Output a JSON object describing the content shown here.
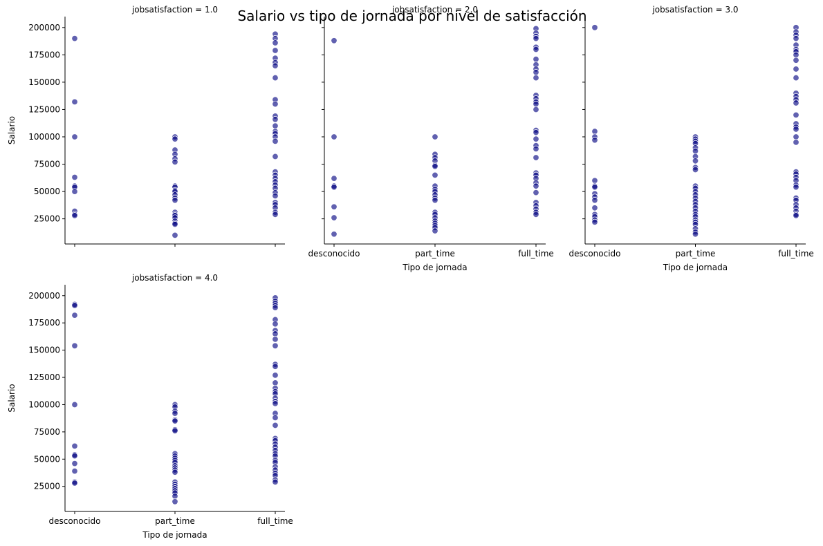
{
  "figure": {
    "title": "Salario vs tipo de jornada por nivel de satisfacción",
    "point_color": "#000080",
    "point_opacity": 0.62
  },
  "chart_data": {
    "type": "scatter",
    "title": "Salario vs tipo de jornada por nivel de satisfacción",
    "xlabel": "Tipo de jornada",
    "ylabel": "Salario",
    "categories": [
      "desconocido",
      "part_time",
      "full_time"
    ],
    "ylim": [
      2000,
      210000
    ],
    "yticks": [
      25000,
      50000,
      75000,
      100000,
      125000,
      150000,
      175000,
      200000
    ],
    "grid": false,
    "legend": "none",
    "panels": [
      {
        "title": "jobsatisfaction = 1.0",
        "show_xticklabels": false,
        "show_xlabel": false,
        "show_yticklabels": true,
        "show_ylabel": true,
        "points": {
          "desconocido": [
            190000,
            132000,
            100000,
            63000,
            55000,
            54000,
            50000,
            32000,
            29000,
            28000
          ],
          "part_time": [
            100000,
            98000,
            88000,
            84000,
            80000,
            77000,
            55000,
            54000,
            51000,
            50000,
            47000,
            44000,
            42000,
            31000,
            29000,
            28000,
            26000,
            23000,
            21000,
            20000,
            10000
          ],
          "full_time": [
            194000,
            190000,
            186000,
            179000,
            172000,
            168000,
            165000,
            154000,
            134000,
            130000,
            119000,
            116000,
            110000,
            105000,
            103000,
            100000,
            96000,
            82000,
            68000,
            65000,
            62000,
            59000,
            56000,
            53000,
            49000,
            46000,
            40000,
            38000,
            35000,
            31000,
            29000
          ]
        }
      },
      {
        "title": "jobsatisfaction = 2.0",
        "show_xticklabels": true,
        "show_xlabel": true,
        "show_yticklabels": false,
        "show_ylabel": false,
        "points": {
          "desconocido": [
            188000,
            100000,
            62000,
            55000,
            54000,
            36000,
            26000,
            11000
          ],
          "part_time": [
            100000,
            84000,
            81000,
            78000,
            74000,
            73000,
            65000,
            55000,
            52000,
            50000,
            47000,
            44000,
            42000,
            31000,
            29000,
            26000,
            23000,
            21000,
            19000,
            17000,
            14000
          ],
          "full_time": [
            199000,
            195000,
            192000,
            190000,
            182000,
            180000,
            171000,
            166000,
            162000,
            159000,
            154000,
            138000,
            135000,
            132000,
            130000,
            125000,
            106000,
            104000,
            98000,
            92000,
            89000,
            81000,
            67000,
            65000,
            62000,
            58000,
            55000,
            49000,
            40000,
            37000,
            34000,
            31000,
            29000
          ]
        }
      },
      {
        "title": "jobsatisfaction = 3.0",
        "show_xticklabels": true,
        "show_xlabel": true,
        "show_yticklabels": false,
        "show_ylabel": false,
        "points": {
          "desconocido": [
            200000,
            105000,
            100000,
            97000,
            60000,
            55000,
            54000,
            48000,
            45000,
            42000,
            35000,
            29000,
            27000,
            24000,
            22000
          ],
          "part_time": [
            100000,
            98000,
            96000,
            94000,
            90000,
            87000,
            82000,
            78000,
            72000,
            70000,
            55000,
            53000,
            50000,
            47000,
            44000,
            41000,
            38000,
            35000,
            32000,
            29000,
            27000,
            24000,
            22000,
            20000,
            16000,
            13000,
            11000
          ],
          "full_time": [
            200000,
            196000,
            193000,
            190000,
            184000,
            180000,
            178000,
            175000,
            170000,
            162000,
            154000,
            140000,
            137000,
            134000,
            131000,
            120000,
            112000,
            109000,
            107000,
            100000,
            95000,
            68000,
            66000,
            63000,
            60000,
            56000,
            54000,
            44000,
            42000,
            38000,
            35000,
            32000,
            29000,
            28000
          ]
        }
      },
      {
        "title": "jobsatisfaction = 4.0",
        "show_xticklabels": true,
        "show_xlabel": true,
        "show_yticklabels": true,
        "show_ylabel": true,
        "points": {
          "desconocido": [
            192000,
            191000,
            182000,
            154000,
            100000,
            62000,
            54000,
            53000,
            46000,
            39000,
            29000,
            28000
          ],
          "part_time": [
            100000,
            98000,
            94000,
            92000,
            86000,
            85000,
            77000,
            76000,
            55000,
            53000,
            51000,
            49000,
            47000,
            44000,
            42000,
            40000,
            38000,
            29000,
            27000,
            25000,
            23000,
            21000,
            19000,
            16000,
            11000
          ],
          "full_time": [
            198000,
            195000,
            193000,
            191000,
            189000,
            178000,
            174000,
            168000,
            165000,
            160000,
            154000,
            137000,
            135000,
            127000,
            120000,
            115000,
            112000,
            110000,
            106000,
            103000,
            101000,
            92000,
            88000,
            81000,
            69000,
            67000,
            64000,
            61000,
            58000,
            55000,
            53000,
            49000,
            47000,
            43000,
            40000,
            37000,
            35000,
            31000,
            29000
          ]
        }
      }
    ]
  }
}
